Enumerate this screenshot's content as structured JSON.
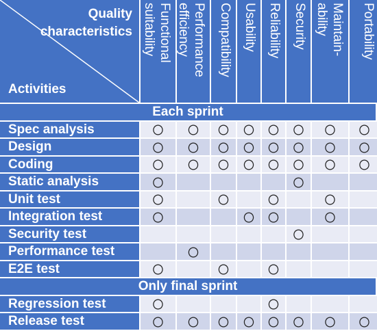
{
  "header": {
    "corner_top": "Quality characteristics",
    "corner_bottom": "Activities",
    "columns": [
      [
        "Functional",
        "suitability"
      ],
      [
        "Performance",
        "efficiency"
      ],
      [
        "Compatibility"
      ],
      [
        "Usability"
      ],
      [
        "Reliability"
      ],
      [
        "Security"
      ],
      [
        "Maintain-",
        "ability"
      ],
      [
        "Portability"
      ]
    ]
  },
  "sections": [
    {
      "title": "Each sprint",
      "rows": [
        {
          "activity": "Spec analysis",
          "marks": [
            "〇",
            "〇",
            "〇",
            "〇",
            "〇",
            "〇",
            "〇",
            "〇"
          ]
        },
        {
          "activity": "Design",
          "marks": [
            "〇",
            "〇",
            "〇",
            "〇",
            "〇",
            "〇",
            "〇",
            "〇"
          ]
        },
        {
          "activity": "Coding",
          "marks": [
            "〇",
            "〇",
            "〇",
            "〇",
            "〇",
            "〇",
            "〇",
            "〇"
          ]
        },
        {
          "activity": "Static analysis",
          "marks": [
            "〇",
            null,
            null,
            null,
            null,
            "〇",
            null,
            null
          ]
        },
        {
          "activity": "Unit test",
          "marks": [
            "〇",
            null,
            "〇",
            null,
            "〇",
            null,
            "〇",
            null
          ]
        },
        {
          "activity": "Integration test",
          "marks": [
            "〇",
            null,
            null,
            "〇",
            "〇",
            null,
            "〇",
            null
          ]
        },
        {
          "activity": "Security test",
          "marks": [
            null,
            null,
            null,
            null,
            null,
            "〇",
            null,
            null
          ]
        },
        {
          "activity": "Performance test",
          "marks": [
            null,
            "〇",
            null,
            null,
            null,
            null,
            null,
            null
          ]
        },
        {
          "activity": "E2E test",
          "marks": [
            "〇",
            null,
            "〇",
            null,
            "〇",
            null,
            null,
            null
          ]
        }
      ]
    },
    {
      "title": "Only final sprint",
      "rows": [
        {
          "activity": "Regression test",
          "marks": [
            "〇",
            null,
            null,
            null,
            "〇",
            null,
            null,
            null
          ]
        },
        {
          "activity": "Release test",
          "marks": [
            "〇",
            "〇",
            "〇",
            "〇",
            "〇",
            "〇",
            "〇",
            "〇"
          ]
        }
      ]
    }
  ]
}
